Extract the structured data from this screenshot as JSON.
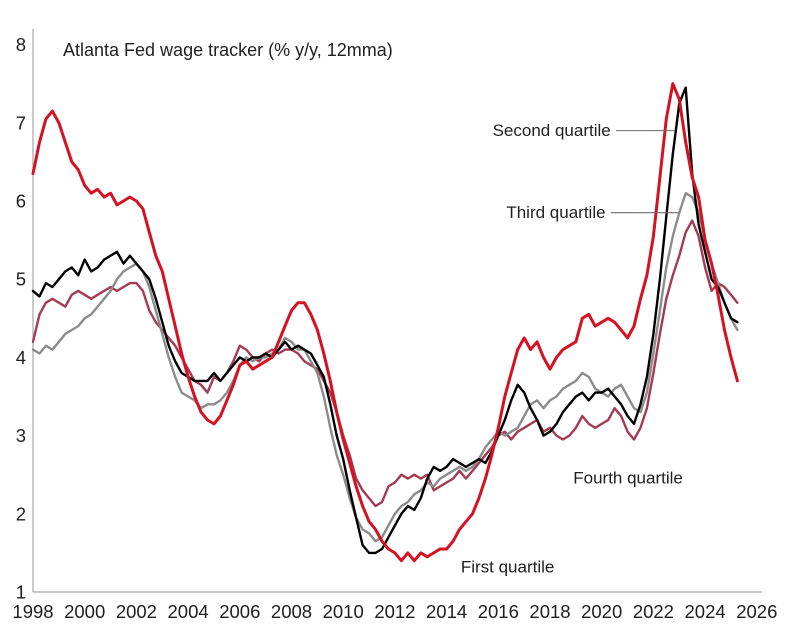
{
  "chart_data": {
    "type": "line",
    "title": "Atlanta Fed wage tracker (% y/y, 12mma)",
    "xlabel": "",
    "ylabel": "",
    "x_start": 1998.0,
    "x_step": 0.25,
    "xlim": [
      1998,
      2026.2
    ],
    "ylim": [
      1,
      8.2
    ],
    "x_ticks": [
      1998,
      2000,
      2002,
      2004,
      2006,
      2008,
      2010,
      2012,
      2014,
      2016,
      2018,
      2020,
      2022,
      2024,
      2026
    ],
    "y_ticks": [
      1,
      2,
      3,
      4,
      5,
      6,
      7,
      8
    ],
    "grid": false,
    "legend_position": "inline-annotations",
    "axis_color": "#a6a6a6",
    "background_color": "#ffffff",
    "series": [
      {
        "name": "Fourth quartile",
        "color": "#a53a52",
        "stroke_width": 2.4,
        "values": [
          4.2,
          4.55,
          4.7,
          4.75,
          4.7,
          4.65,
          4.8,
          4.85,
          4.8,
          4.75,
          4.8,
          4.85,
          4.9,
          4.85,
          4.9,
          4.95,
          4.95,
          4.85,
          4.6,
          4.45,
          4.35,
          4.25,
          4.15,
          4.0,
          3.85,
          3.7,
          3.65,
          3.55,
          3.75,
          3.7,
          3.8,
          3.95,
          4.15,
          4.1,
          4.0,
          3.95,
          4.05,
          4.1,
          4.05,
          4.1,
          4.1,
          4.05,
          3.95,
          3.9,
          3.85,
          3.7,
          3.55,
          3.3,
          3.0,
          2.75,
          2.45,
          2.3,
          2.2,
          2.1,
          2.15,
          2.35,
          2.4,
          2.5,
          2.45,
          2.5,
          2.45,
          2.5,
          2.3,
          2.35,
          2.4,
          2.45,
          2.55,
          2.45,
          2.55,
          2.65,
          2.75,
          2.85,
          3.0,
          3.05,
          2.95,
          3.05,
          3.1,
          3.15,
          3.2,
          3.05,
          3.1,
          3.0,
          2.95,
          3.0,
          3.1,
          3.25,
          3.15,
          3.1,
          3.15,
          3.2,
          3.35,
          3.25,
          3.05,
          2.95,
          3.1,
          3.35,
          3.8,
          4.3,
          4.75,
          5.05,
          5.3,
          5.6,
          5.75,
          5.55,
          5.15,
          4.85,
          4.95,
          4.9,
          4.8,
          4.7
        ]
      },
      {
        "name": "Third quartile",
        "color": "#8c8c8c",
        "stroke_width": 2.4,
        "values": [
          4.1,
          4.05,
          4.15,
          4.1,
          4.2,
          4.3,
          4.35,
          4.4,
          4.5,
          4.55,
          4.65,
          4.75,
          4.85,
          5.0,
          5.1,
          5.15,
          5.2,
          5.1,
          4.9,
          4.6,
          4.3,
          4.0,
          3.75,
          3.55,
          3.5,
          3.45,
          3.35,
          3.4,
          3.4,
          3.45,
          3.55,
          3.7,
          3.9,
          4.0,
          3.95,
          4.0,
          4.0,
          4.05,
          4.1,
          4.25,
          4.2,
          4.1,
          4.1,
          3.95,
          3.8,
          3.5,
          3.1,
          2.75,
          2.5,
          2.2,
          1.95,
          1.8,
          1.75,
          1.65,
          1.7,
          1.85,
          2.0,
          2.1,
          2.15,
          2.25,
          2.3,
          2.4,
          2.35,
          2.45,
          2.5,
          2.55,
          2.6,
          2.55,
          2.6,
          2.7,
          2.85,
          2.95,
          3.05,
          3.0,
          3.05,
          3.1,
          3.25,
          3.4,
          3.45,
          3.35,
          3.45,
          3.5,
          3.6,
          3.65,
          3.7,
          3.8,
          3.75,
          3.6,
          3.55,
          3.5,
          3.6,
          3.65,
          3.5,
          3.35,
          3.3,
          3.55,
          4.05,
          4.6,
          5.15,
          5.55,
          5.85,
          6.1,
          6.05,
          5.85,
          5.5,
          5.2,
          4.95,
          4.7,
          4.5,
          4.35
        ]
      },
      {
        "name": "Second quartile",
        "color": "#000000",
        "stroke_width": 2.4,
        "values": [
          4.85,
          4.78,
          4.95,
          4.9,
          5.0,
          5.1,
          5.15,
          5.05,
          5.25,
          5.1,
          5.15,
          5.25,
          5.3,
          5.35,
          5.2,
          5.3,
          5.2,
          5.1,
          5.0,
          4.75,
          4.45,
          4.15,
          3.95,
          3.8,
          3.75,
          3.7,
          3.7,
          3.7,
          3.8,
          3.7,
          3.8,
          3.9,
          4.0,
          3.95,
          4.0,
          4.0,
          4.05,
          4.0,
          4.1,
          4.2,
          4.1,
          4.15,
          4.1,
          4.05,
          3.9,
          3.75,
          3.4,
          3.0,
          2.7,
          2.3,
          1.95,
          1.6,
          1.5,
          1.5,
          1.55,
          1.7,
          1.85,
          2.0,
          2.1,
          2.05,
          2.2,
          2.45,
          2.6,
          2.55,
          2.6,
          2.7,
          2.65,
          2.6,
          2.65,
          2.7,
          2.65,
          2.8,
          3.0,
          3.2,
          3.45,
          3.65,
          3.55,
          3.35,
          3.2,
          3.0,
          3.05,
          3.15,
          3.3,
          3.4,
          3.5,
          3.55,
          3.45,
          3.55,
          3.55,
          3.6,
          3.5,
          3.4,
          3.25,
          3.15,
          3.4,
          3.75,
          4.3,
          5.0,
          5.8,
          6.6,
          7.25,
          7.45,
          6.35,
          5.7,
          5.35,
          5.0,
          4.9,
          4.7,
          4.5,
          4.45
        ]
      },
      {
        "name": "First quartile",
        "color": "#d41222",
        "stroke_width": 3,
        "values": [
          6.35,
          6.75,
          7.05,
          7.15,
          7.0,
          6.75,
          6.5,
          6.4,
          6.2,
          6.1,
          6.15,
          6.05,
          6.1,
          5.95,
          6.0,
          6.05,
          6.0,
          5.9,
          5.6,
          5.3,
          5.1,
          4.75,
          4.4,
          4.05,
          3.75,
          3.5,
          3.3,
          3.2,
          3.15,
          3.25,
          3.45,
          3.65,
          3.9,
          3.95,
          3.85,
          3.9,
          3.95,
          4.0,
          4.2,
          4.4,
          4.6,
          4.7,
          4.7,
          4.55,
          4.35,
          4.05,
          3.7,
          3.3,
          2.95,
          2.65,
          2.35,
          2.1,
          1.9,
          1.8,
          1.65,
          1.55,
          1.5,
          1.4,
          1.5,
          1.4,
          1.5,
          1.45,
          1.5,
          1.55,
          1.55,
          1.65,
          1.8,
          1.9,
          2.0,
          2.2,
          2.45,
          2.75,
          3.1,
          3.5,
          3.8,
          4.1,
          4.25,
          4.1,
          4.2,
          4.0,
          3.85,
          4.0,
          4.1,
          4.15,
          4.2,
          4.5,
          4.55,
          4.4,
          4.45,
          4.5,
          4.45,
          4.35,
          4.25,
          4.4,
          4.75,
          5.05,
          5.55,
          6.3,
          7.05,
          7.5,
          7.3,
          6.75,
          6.3,
          6.05,
          5.5,
          5.2,
          4.8,
          4.35,
          4.0,
          3.7
        ]
      }
    ],
    "annotations": [
      {
        "id": "second-quartile",
        "text": "Second quartile",
        "color": "#000000",
        "align": "end",
        "x": 2020.35,
        "y": 6.9,
        "leader": [
          2020.55,
          6.9,
          2022.85,
          6.9
        ],
        "leader_color": "#6b6b6b"
      },
      {
        "id": "third-quartile",
        "text": "Third quartile",
        "color": "#8c8c8c",
        "align": "end",
        "x": 2020.15,
        "y": 5.85,
        "leader": [
          2020.35,
          5.85,
          2022.97,
          5.85
        ],
        "leader_color": "#6b6b6b"
      },
      {
        "id": "fourth-quartile",
        "text": "Fourth quartile",
        "color": "#a53a52",
        "align": "start",
        "x": 2018.9,
        "y": 2.46,
        "leader": null
      },
      {
        "id": "first-quartile",
        "text": "First quartile",
        "color": "#d41222",
        "align": "start",
        "x": 2014.55,
        "y": 1.32,
        "leader": null
      }
    ]
  }
}
